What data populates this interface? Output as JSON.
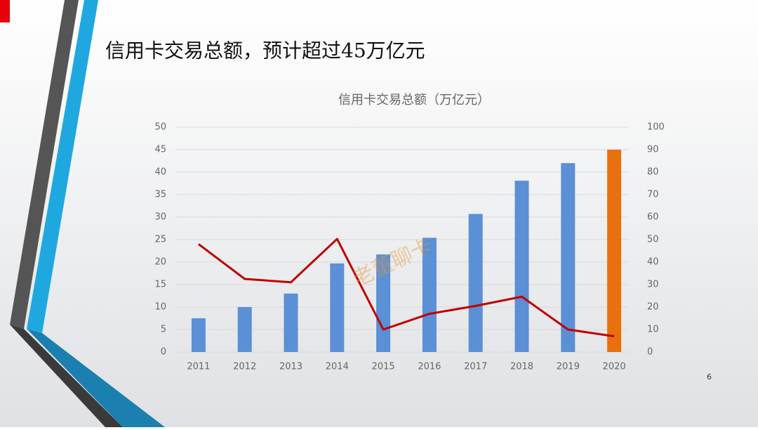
{
  "slide_title": "信用卡交易总额，预计超过45万亿元",
  "page_number": "6",
  "watermark": "老董聊卡",
  "chart_data": {
    "type": "bar",
    "title": "信用卡交易总额（万亿元）",
    "categories": [
      "2011",
      "2012",
      "2013",
      "2014",
      "2015",
      "2016",
      "2017",
      "2018",
      "2019",
      "2020"
    ],
    "series": [
      {
        "type": "bar",
        "color": "#5b8fd6",
        "bar_colors": [
          "#5b8fd6",
          "#5b8fd6",
          "#5b8fd6",
          "#5b8fd6",
          "#5b8fd6",
          "#5b8fd6",
          "#5b8fd6",
          "#5b8fd6",
          "#5b8fd6",
          "#e8700e"
        ],
        "values": [
          7.5,
          10,
          13,
          19.7,
          21.7,
          25.4,
          30.7,
          38.1,
          42,
          45
        ]
      },
      {
        "type": "line",
        "axis": "y2",
        "color": "#c00000",
        "values": [
          48,
          32.5,
          31,
          50.3,
          10,
          17,
          20.5,
          24.6,
          10,
          7
        ]
      }
    ],
    "ylim": [
      0,
      50
    ],
    "yticks": [
      0,
      5,
      10,
      15,
      20,
      25,
      30,
      35,
      40,
      45,
      50
    ],
    "y2lim": [
      0,
      100
    ],
    "y2ticks": [
      0,
      10,
      20,
      30,
      40,
      50,
      60,
      70,
      80,
      90,
      100
    ],
    "grid": true
  }
}
